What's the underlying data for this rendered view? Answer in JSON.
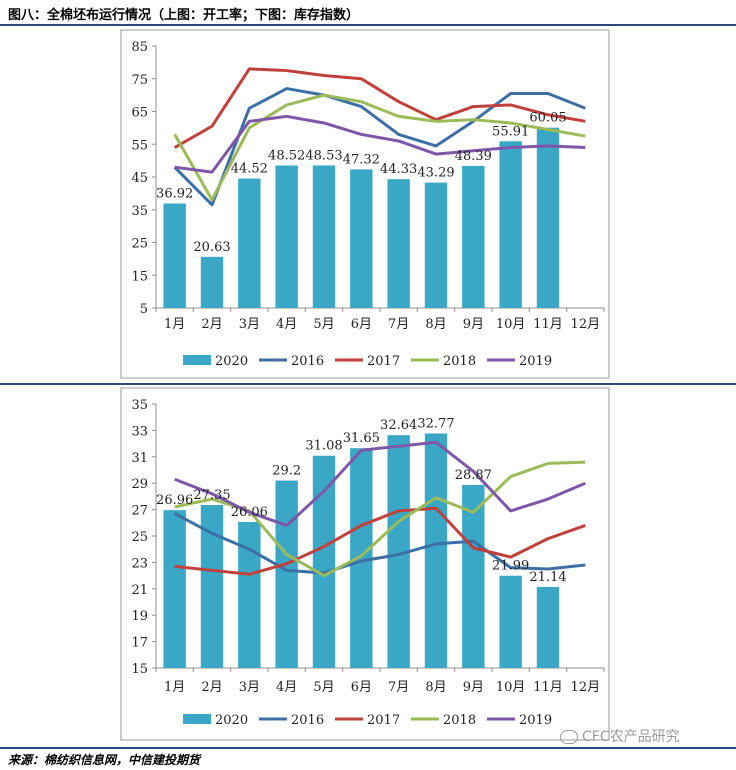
{
  "header": {
    "title": "图八：全棉坯布运行情况（上图：开工率；下图：库存指数）"
  },
  "footer": {
    "source": "来源：棉纺织信息网，中信建投期货",
    "watermark": "CFC农产品研究"
  },
  "chart_data": [
    {
      "type": "bar",
      "title": "",
      "xlabel": "",
      "ylabel": "",
      "ylim": [
        5,
        85
      ],
      "yticks": [
        5,
        15,
        25,
        35,
        45,
        55,
        65,
        75,
        85
      ],
      "grid": false,
      "legend_position": "bottom",
      "categories": [
        "1月",
        "2月",
        "3月",
        "4月",
        "5月",
        "6月",
        "7月",
        "8月",
        "9月",
        "10月",
        "11月",
        "12月"
      ],
      "bar_series": {
        "name": "2020",
        "color": "#3aa7c6",
        "values": [
          36.92,
          20.63,
          44.52,
          48.52,
          48.53,
          47.32,
          44.33,
          43.29,
          48.39,
          55.91,
          60.05,
          null
        ],
        "labels": [
          "36.92",
          "20.63",
          "44.52",
          "48.52",
          "48.53",
          "47.32",
          "44.33",
          "43.29",
          "48.39",
          "55.91",
          "60.05",
          ""
        ]
      },
      "line_series": [
        {
          "name": "2016",
          "color": "#3c6fa6",
          "values": [
            48,
            36.5,
            66,
            72,
            70,
            66.5,
            58,
            54.5,
            62,
            70.5,
            70.5,
            66
          ]
        },
        {
          "name": "2017",
          "color": "#c0413b",
          "values": [
            54,
            60.5,
            78,
            77.5,
            76,
            75,
            68,
            62.5,
            66.5,
            67,
            64,
            62
          ]
        },
        {
          "name": "2018",
          "color": "#9bbb59",
          "values": [
            58,
            38,
            60,
            67,
            70,
            68,
            63.5,
            62,
            62.5,
            61.5,
            59.5,
            57.5
          ]
        },
        {
          "name": "2019",
          "color": "#7e57a8",
          "values": [
            48,
            46.5,
            62,
            63.5,
            61.5,
            58,
            56,
            52,
            53,
            54,
            54.5,
            54
          ]
        }
      ]
    },
    {
      "type": "bar",
      "title": "",
      "xlabel": "",
      "ylabel": "",
      "ylim": [
        15,
        35
      ],
      "yticks": [
        15,
        17,
        19,
        21,
        23,
        25,
        27,
        29,
        31,
        33,
        35
      ],
      "grid": false,
      "legend_position": "bottom",
      "categories": [
        "1月",
        "2月",
        "3月",
        "4月",
        "5月",
        "6月",
        "7月",
        "8月",
        "9月",
        "10月",
        "11月",
        "12月"
      ],
      "bar_series": {
        "name": "2020",
        "color": "#3aa7c6",
        "values": [
          26.96,
          27.35,
          26.06,
          29.2,
          31.08,
          31.65,
          32.64,
          32.77,
          28.87,
          21.99,
          21.14,
          null
        ],
        "labels": [
          "26.96",
          "27.35",
          "26.06",
          "29.2",
          "31.08",
          "31.65",
          "32.64",
          "32.77",
          "28.87",
          "21.99",
          "21.14",
          ""
        ]
      },
      "line_series": [
        {
          "name": "2016",
          "color": "#3c6fa6",
          "values": [
            26.7,
            25.2,
            24,
            22.4,
            22.2,
            23.1,
            23.6,
            24.4,
            24.6,
            22.6,
            22.5,
            22.8
          ]
        },
        {
          "name": "2017",
          "color": "#c0413b",
          "values": [
            22.7,
            22.4,
            22.1,
            22.9,
            24.2,
            25.8,
            26.9,
            27.1,
            24.1,
            23.4,
            24.8,
            25.8
          ]
        },
        {
          "name": "2018",
          "color": "#9bbb59",
          "values": [
            27.2,
            27.8,
            26.9,
            23.6,
            22,
            23.5,
            26.1,
            27.9,
            26.8,
            29.5,
            30.5,
            30.6
          ]
        },
        {
          "name": "2019",
          "color": "#7e57a8",
          "values": [
            29.3,
            28.2,
            26.8,
            25.8,
            28.4,
            31.5,
            31.8,
            32.1,
            29.9,
            26.9,
            27.8,
            29
          ]
        }
      ]
    }
  ]
}
